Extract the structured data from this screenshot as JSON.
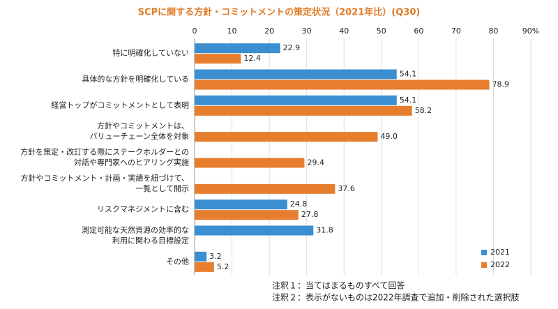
{
  "chart_data": {
    "type": "hbar",
    "title": "SCPに関する方針・コミットメントの策定状況（2021年比）(Q30)",
    "categories": [
      "特に明確化していない",
      "具体的な方針を明確化している",
      "経営トップがコミットメントとして表明",
      "方針やコミットメントは、\nバリューチェーン全体を対象",
      "方針を策定・改訂する際にステークホルダーとの\n対話や専門家へのヒアリング実施",
      "方針やコミットメント・計画・実績を紐づけて、\n一覧として開示",
      "リスクマネジメントに含む",
      "測定可能な天然資源の効率的な\n利用に関わる目標設定",
      "その他"
    ],
    "series": [
      {
        "name": "2021",
        "color": "#3b8fd0",
        "values": [
          22.9,
          54.1,
          54.1,
          null,
          null,
          null,
          24.8,
          31.8,
          3.2
        ],
        "value_labels": [
          "22.9",
          "54.1",
          "54.1",
          null,
          null,
          null,
          "24.8",
          "31.8",
          "3.2"
        ]
      },
      {
        "name": "2022",
        "color": "#e67e2e",
        "values": [
          12.4,
          78.9,
          58.2,
          49.0,
          29.4,
          37.6,
          27.8,
          null,
          5.2
        ],
        "value_labels": [
          "12.4",
          "78.9",
          "58.2",
          "49.0",
          "29.4",
          "37.6",
          "27.8",
          null,
          "5.2"
        ]
      }
    ],
    "xlim": [
      0,
      90
    ],
    "xticks": [
      0,
      10,
      20,
      30,
      40,
      50,
      60,
      70,
      80,
      {
        "value": 90,
        "label": "90%"
      }
    ],
    "grid": true,
    "legend": "lower right",
    "notes": [
      "注釈１：当てはまるものすべて回答",
      "注釈２：表示がないものは2022年調査で追加・削除された選択肢"
    ]
  }
}
